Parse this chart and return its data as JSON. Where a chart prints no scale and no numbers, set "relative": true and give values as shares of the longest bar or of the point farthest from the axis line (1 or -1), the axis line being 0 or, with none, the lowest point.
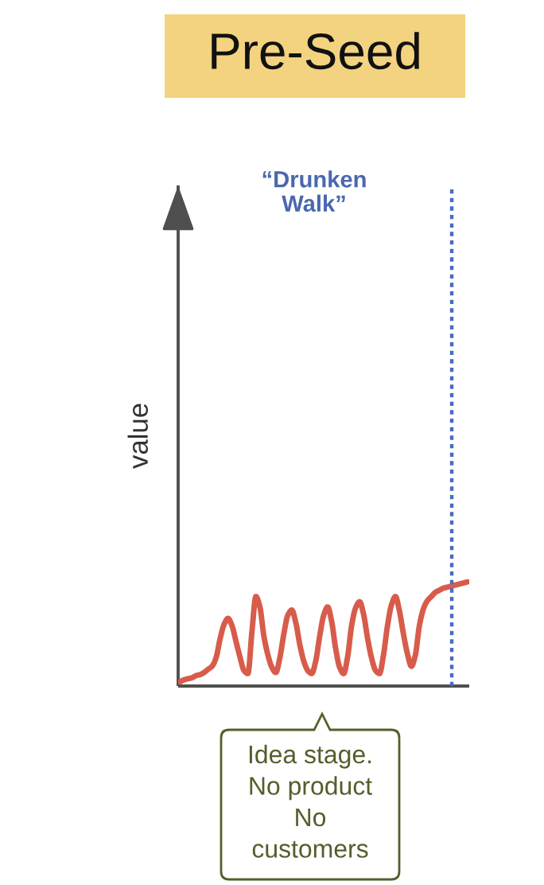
{
  "chart_data": {
    "type": "line",
    "title": "Pre-Seed",
    "ylabel": "value",
    "relative": true,
    "categories": [
      null,
      null,
      null,
      null,
      null,
      null,
      null,
      null,
      null,
      null,
      null,
      null,
      null,
      null,
      null,
      null,
      null,
      null,
      null,
      null,
      null,
      null,
      null,
      null,
      null,
      null,
      null,
      null,
      null,
      null,
      null,
      null,
      null,
      null,
      null,
      null,
      null,
      null,
      null,
      null,
      null,
      null,
      null,
      null,
      null,
      null,
      null,
      null,
      null,
      null,
      null,
      null,
      null,
      null,
      null,
      null,
      null,
      null,
      null,
      null,
      null,
      null,
      null,
      null,
      null,
      null,
      null,
      null,
      null,
      null,
      null,
      null,
      null
    ],
    "series": [
      {
        "color": "#d85c4b",
        "values": [
          0.04,
          0.06,
          0.07,
          0.08,
          0.1,
          0.11,
          0.13,
          0.16,
          0.19,
          0.27,
          0.45,
          0.59,
          0.65,
          0.58,
          0.43,
          0.28,
          0.15,
          0.12,
          0.52,
          0.86,
          0.76,
          0.48,
          0.3,
          0.18,
          0.13,
          0.27,
          0.5,
          0.68,
          0.73,
          0.61,
          0.4,
          0.24,
          0.15,
          0.12,
          0.24,
          0.48,
          0.68,
          0.76,
          0.62,
          0.36,
          0.18,
          0.12,
          0.28,
          0.58,
          0.75,
          0.81,
          0.69,
          0.46,
          0.27,
          0.15,
          0.12,
          0.3,
          0.58,
          0.78,
          0.86,
          0.72,
          0.5,
          0.31,
          0.19,
          0.3,
          0.58,
          0.74,
          0.82,
          0.86,
          0.9,
          0.92,
          0.94,
          0.95,
          0.96,
          0.97,
          0.98,
          0.99,
          1.0
        ]
      }
    ],
    "annotations": [
      "“Drunken\nWalk”",
      "Idea stage.\nNo product\nNo\ncustomers"
    ]
  }
}
